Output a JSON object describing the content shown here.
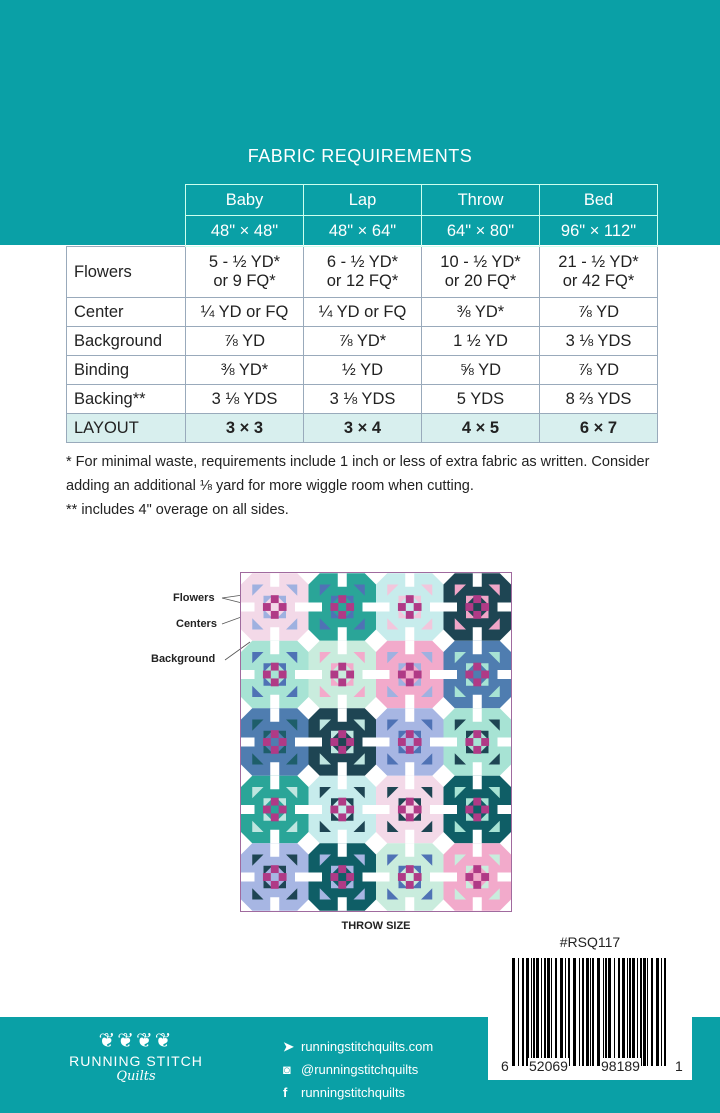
{
  "title": "FABRIC REQUIREMENTS",
  "table": {
    "columns": [
      {
        "name": "Baby",
        "size": "48\" × 48\""
      },
      {
        "name": "Lap",
        "size": "48\" × 64\""
      },
      {
        "name": "Throw",
        "size": "64\" × 80\""
      },
      {
        "name": "Bed",
        "size": "96\" × 112\""
      }
    ],
    "rows": [
      {
        "label": "Flowers",
        "cells": [
          [
            "5 - ½ YD*",
            "or 9 FQ*"
          ],
          [
            "6 - ½ YD*",
            "or 12 FQ*"
          ],
          [
            "10 - ½ YD*",
            "or 20 FQ*"
          ],
          [
            "21 - ½ YD*",
            "or 42 FQ*"
          ]
        ]
      },
      {
        "label": "Center",
        "cells": [
          [
            "¼ YD or FQ"
          ],
          [
            "¼ YD or FQ"
          ],
          [
            "⅜ YD*"
          ],
          [
            "⅞ YD"
          ]
        ]
      },
      {
        "label": "Background",
        "cells": [
          [
            "⅞ YD"
          ],
          [
            "⅞ YD*"
          ],
          [
            "1 ½ YD"
          ],
          [
            "3 ⅛ YDS"
          ]
        ]
      },
      {
        "label": "Binding",
        "cells": [
          [
            "⅜ YD*"
          ],
          [
            "½ YD"
          ],
          [
            "⅝ YD"
          ],
          [
            "⅞ YD"
          ]
        ]
      },
      {
        "label": "Backing**",
        "cells": [
          [
            "3 ⅛ YDS"
          ],
          [
            "3 ⅛ YDS"
          ],
          [
            "5 YDS"
          ],
          [
            "8 ⅔ YDS"
          ]
        ]
      },
      {
        "label": "LAYOUT",
        "cells": [
          [
            "3 × 3"
          ],
          [
            "3 × 4"
          ],
          [
            "4 × 5"
          ],
          [
            "6 × 7"
          ]
        ]
      }
    ]
  },
  "notes": [
    "* For minimal waste, requirements include 1 inch or less of extra fabric as written. Consider adding an additional ⅛ yard for more wiggle room when cutting.",
    "** includes 4\" overage on all sides."
  ],
  "diagram": {
    "labels": {
      "flowers": "Flowers",
      "centers": "Centers",
      "background": "Background"
    },
    "caption": "THROW SIZE",
    "center_color": "#b03a86",
    "blocks": [
      [
        [
          "#f3d9e8",
          "#9fb1e0"
        ],
        [
          "#2aa598",
          "#4f72b5"
        ],
        [
          "#c7ecec",
          "#f2c6dc"
        ],
        [
          "#1e4553",
          "#f1a6c8"
        ]
      ],
      [
        [
          "#a7e3d4",
          "#4f72b5"
        ],
        [
          "#c9ecdd",
          "#f3aacb"
        ],
        [
          "#f2aacb",
          "#9fb1e0"
        ],
        [
          "#4f7db0",
          "#a7e3d4"
        ]
      ],
      [
        [
          "#4f7db0",
          "#1e5e6a"
        ],
        [
          "#1e4553",
          "#bfe6e0"
        ],
        [
          "#a7b6e3",
          "#4f72b5"
        ],
        [
          "#a7e3d4",
          "#1e4553"
        ]
      ],
      [
        [
          "#2aa598",
          "#bfe6e0"
        ],
        [
          "#c7ecec",
          "#1e4553"
        ],
        [
          "#f3d9e8",
          "#1e4553"
        ],
        [
          "#0f5e66",
          "#a7e3d4"
        ]
      ],
      [
        [
          "#a7b6e3",
          "#1e4553"
        ],
        [
          "#0f5e66",
          "#a7b6e3"
        ],
        [
          "#c9ecdd",
          "#4f72b5"
        ],
        [
          "#f2aacb",
          "#c9ecdd"
        ]
      ]
    ]
  },
  "sku": "#RSQ117",
  "barcode": {
    "left": "6",
    "mid1": "52069",
    "mid2": "98189",
    "right": "1"
  },
  "footer": {
    "brand": "RUNNING STITCH",
    "brand_script": "Quilts",
    "website": "runningstitchquilts.com",
    "instagram": "@runningstitchquilts",
    "facebook": "runningstitchquilts"
  },
  "colors": {
    "teal": "#0aa0a6",
    "layout_row": "#d8efee"
  }
}
